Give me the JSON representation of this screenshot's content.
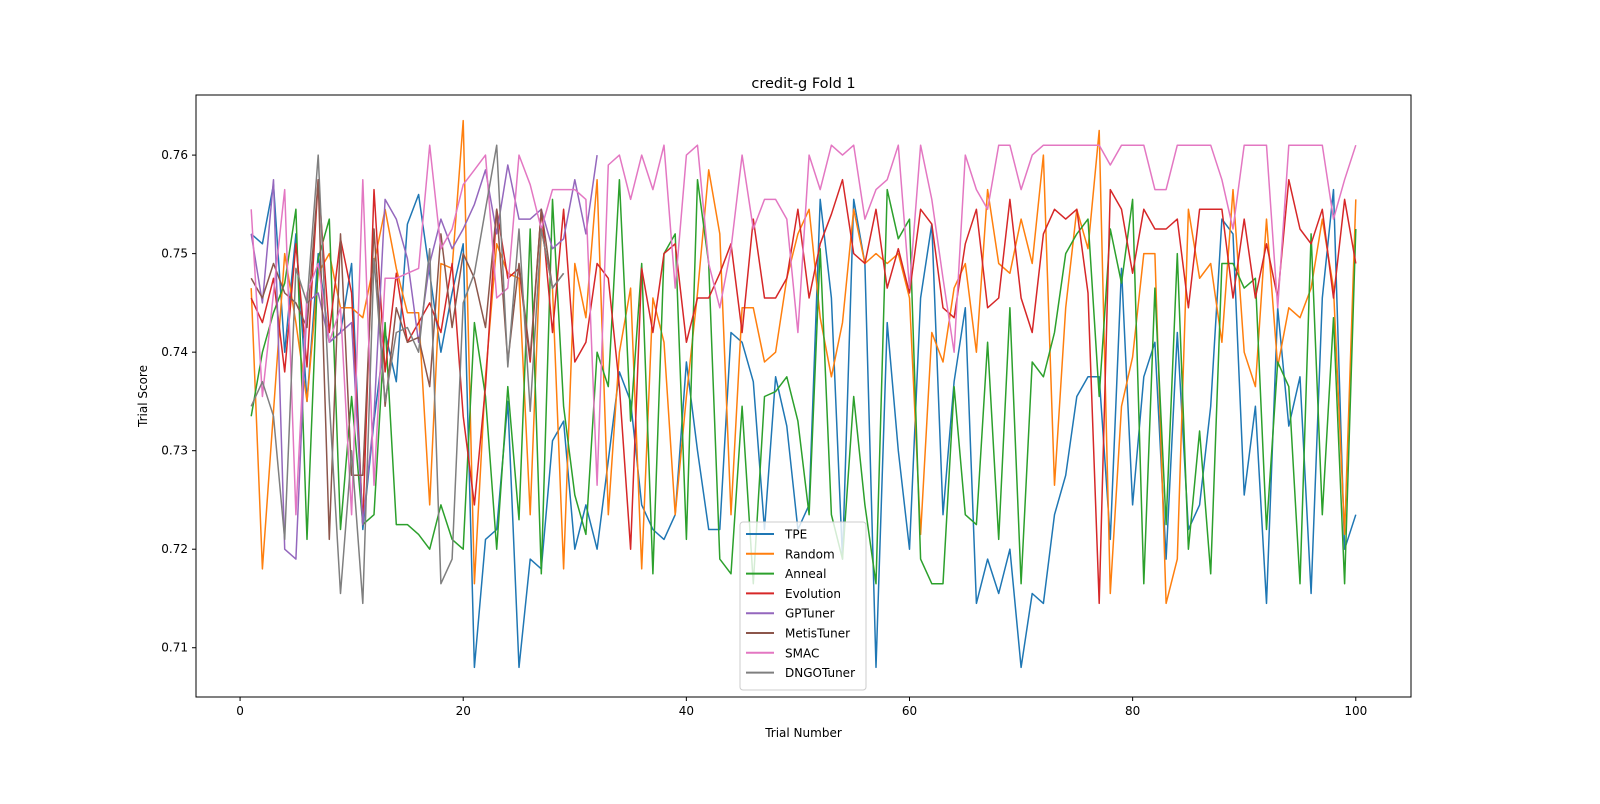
{
  "chart_data": {
    "type": "line",
    "title": "credit-g Fold 1",
    "xlabel": "Trial Number",
    "ylabel": "Trial Score",
    "xlim": [
      -3.95,
      104.95
    ],
    "ylim": [
      0.705,
      0.7661
    ],
    "xticks": [
      0,
      20,
      40,
      60,
      80,
      100
    ],
    "yticks": [
      0.71,
      0.72,
      0.73,
      0.74,
      0.75,
      0.76
    ],
    "ytick_labels": [
      "0.71",
      "0.72",
      "0.73",
      "0.74",
      "0.75",
      "0.76"
    ],
    "grid": false,
    "legend_position": "lower center",
    "series": [
      {
        "name": "TPE",
        "color": "#1f77b4",
        "x_start": 1,
        "values": [
          0.752,
          0.751,
          0.757,
          0.74,
          0.752,
          0.735,
          0.75,
          0.741,
          0.742,
          0.749,
          0.722,
          0.733,
          0.742,
          0.737,
          0.753,
          0.756,
          0.748,
          0.74,
          0.746,
          0.751,
          0.708,
          0.721,
          0.722,
          0.735,
          0.708,
          0.719,
          0.718,
          0.731,
          0.733,
          0.72,
          0.7245,
          0.72,
          0.729,
          0.738,
          0.735,
          0.7245,
          0.722,
          0.721,
          0.7235,
          0.739,
          0.73,
          0.722,
          0.722,
          0.742,
          0.741,
          0.737,
          0.722,
          0.7375,
          0.7325,
          0.722,
          0.7245,
          0.7555,
          0.7455,
          0.719,
          0.7555,
          0.749,
          0.708,
          0.743,
          0.73,
          0.72,
          0.7455,
          0.753,
          0.7235,
          0.737,
          0.7445,
          0.7145,
          0.719,
          0.7155,
          0.72,
          0.708,
          0.7155,
          0.7145,
          0.7235,
          0.7275,
          0.7355,
          0.7375,
          0.7375,
          0.721,
          0.7485,
          0.7245,
          0.7375,
          0.741,
          0.719,
          0.742,
          0.722,
          0.7245,
          0.7345,
          0.7535,
          0.752,
          0.7255,
          0.7345,
          0.7145,
          0.7445,
          0.7325,
          0.7375,
          0.7155,
          0.7455,
          0.7565,
          0.72,
          0.7235
        ]
      },
      {
        "name": "Random",
        "color": "#ff7f0e",
        "x_start": 1,
        "values": [
          0.7465,
          0.718,
          0.734,
          0.75,
          0.743,
          0.735,
          0.748,
          0.75,
          0.7445,
          0.7445,
          0.7435,
          0.749,
          0.7545,
          0.7485,
          0.744,
          0.744,
          0.7245,
          0.749,
          0.7485,
          0.7635,
          0.7165,
          0.7375,
          0.751,
          0.748,
          0.7475,
          0.7235,
          0.7525,
          0.7465,
          0.718,
          0.749,
          0.7435,
          0.7575,
          0.7235,
          0.74,
          0.7465,
          0.718,
          0.7455,
          0.741,
          0.7235,
          0.7355,
          0.746,
          0.7585,
          0.752,
          0.7235,
          0.7445,
          0.7445,
          0.739,
          0.74,
          0.7475,
          0.752,
          0.7545,
          0.7435,
          0.7375,
          0.743,
          0.7545,
          0.749,
          0.75,
          0.749,
          0.75,
          0.7455,
          0.7215,
          0.742,
          0.739,
          0.7465,
          0.749,
          0.74,
          0.7565,
          0.749,
          0.748,
          0.7535,
          0.749,
          0.76,
          0.7265,
          0.7445,
          0.7545,
          0.7505,
          0.7625,
          0.7155,
          0.7345,
          0.7395,
          0.75,
          0.75,
          0.7145,
          0.719,
          0.7545,
          0.7475,
          0.749,
          0.741,
          0.7565,
          0.74,
          0.7365,
          0.7535,
          0.7385,
          0.7445,
          0.7435,
          0.7465,
          0.7535,
          0.7465,
          0.7215,
          0.7555
        ]
      },
      {
        "name": "Anneal",
        "color": "#2ca02c",
        "x_start": 1,
        "values": [
          0.7335,
          0.74,
          0.744,
          0.747,
          0.7545,
          0.721,
          0.7495,
          0.7535,
          0.722,
          0.7355,
          0.7225,
          0.7235,
          0.743,
          0.7225,
          0.7225,
          0.7215,
          0.72,
          0.7245,
          0.721,
          0.72,
          0.743,
          0.7355,
          0.72,
          0.7365,
          0.723,
          0.7525,
          0.7175,
          0.7555,
          0.7345,
          0.7255,
          0.7215,
          0.74,
          0.7365,
          0.7575,
          0.733,
          0.749,
          0.7175,
          0.75,
          0.752,
          0.721,
          0.7575,
          0.749,
          0.719,
          0.7175,
          0.7345,
          0.7165,
          0.7355,
          0.736,
          0.7375,
          0.733,
          0.7235,
          0.7505,
          0.7235,
          0.719,
          0.7355,
          0.7245,
          0.7165,
          0.7565,
          0.7515,
          0.7535,
          0.719,
          0.7165,
          0.7165,
          0.7365,
          0.7235,
          0.7225,
          0.741,
          0.721,
          0.7445,
          0.7165,
          0.739,
          0.7375,
          0.742,
          0.75,
          0.752,
          0.7535,
          0.7355,
          0.7525,
          0.747,
          0.7555,
          0.7165,
          0.7465,
          0.7225,
          0.75,
          0.72,
          0.732,
          0.7175,
          0.749,
          0.749,
          0.7465,
          0.7475,
          0.722,
          0.739,
          0.7365,
          0.7165,
          0.752,
          0.7235,
          0.7435,
          0.7165,
          0.7525
        ]
      },
      {
        "name": "Evolution",
        "color": "#d62728",
        "x_start": 1,
        "values": [
          0.7455,
          0.743,
          0.7475,
          0.738,
          0.751,
          0.7385,
          0.7575,
          0.742,
          0.7515,
          0.746,
          0.7225,
          0.7565,
          0.738,
          0.748,
          0.741,
          0.743,
          0.745,
          0.742,
          0.749,
          0.7335,
          0.7245,
          0.7365,
          0.7545,
          0.7475,
          0.7485,
          0.739,
          0.7545,
          0.742,
          0.7545,
          0.739,
          0.741,
          0.749,
          0.7475,
          0.7365,
          0.72,
          0.7485,
          0.742,
          0.75,
          0.751,
          0.741,
          0.7455,
          0.7455,
          0.748,
          0.751,
          0.742,
          0.7535,
          0.7455,
          0.7455,
          0.7475,
          0.7545,
          0.7455,
          0.751,
          0.754,
          0.7575,
          0.75,
          0.749,
          0.7545,
          0.7465,
          0.7505,
          0.746,
          0.7545,
          0.753,
          0.7445,
          0.7435,
          0.751,
          0.7545,
          0.7445,
          0.7455,
          0.7555,
          0.7455,
          0.742,
          0.752,
          0.7545,
          0.7535,
          0.7545,
          0.746,
          0.7145,
          0.7565,
          0.7545,
          0.748,
          0.7545,
          0.7525,
          0.7525,
          0.7535,
          0.7445,
          0.7545,
          0.7545,
          0.7545,
          0.7455,
          0.7535,
          0.7455,
          0.751,
          0.7455,
          0.7575,
          0.7525,
          0.751,
          0.7545,
          0.7455,
          0.7555,
          0.749
        ]
      },
      {
        "name": "GPTuner",
        "color": "#9467bd",
        "x_start": 1,
        "values": [
          0.752,
          0.745,
          0.7575,
          0.72,
          0.719,
          0.745,
          0.746,
          0.741,
          0.742,
          0.743,
          0.7225,
          0.7335,
          0.7555,
          0.7535,
          0.7495,
          0.741,
          0.749,
          0.7535,
          0.7505,
          0.7525,
          0.755,
          0.7585,
          0.752,
          0.759,
          0.7535,
          0.7535,
          0.7545,
          0.7505,
          0.7515,
          0.7575,
          0.752,
          0.76
        ]
      },
      {
        "name": "MetisTuner",
        "color": "#8c564b",
        "x_start": 1,
        "values": [
          0.7475,
          0.7455,
          0.749,
          0.746,
          0.745,
          0.7425,
          0.7575,
          0.721,
          0.752,
          0.7275,
          0.7275,
          0.7525,
          0.7345,
          0.7445,
          0.741,
          0.7415,
          0.7365,
          0.752,
          0.7425,
          0.75,
          0.7475,
          0.7425,
          0.7545,
          0.739,
          0.749,
          0.7395,
          0.7545,
          0.7465,
          0.748
        ]
      },
      {
        "name": "SMAC",
        "color": "#e377c2",
        "x_start": 1,
        "values": [
          0.7545,
          0.7355,
          0.746,
          0.7565,
          0.7235,
          0.746,
          0.749,
          0.741,
          0.7445,
          0.7235,
          0.7575,
          0.7265,
          0.7475,
          0.7475,
          0.748,
          0.7485,
          0.761,
          0.7505,
          0.7525,
          0.757,
          0.7585,
          0.76,
          0.7455,
          0.7465,
          0.76,
          0.757,
          0.7525,
          0.7565,
          0.7565,
          0.7565,
          0.7555,
          0.7265,
          0.759,
          0.76,
          0.7555,
          0.76,
          0.7565,
          0.761,
          0.7465,
          0.76,
          0.761,
          0.749,
          0.7445,
          0.7505,
          0.76,
          0.7525,
          0.7555,
          0.7555,
          0.7535,
          0.742,
          0.76,
          0.7565,
          0.761,
          0.76,
          0.761,
          0.7535,
          0.7565,
          0.7575,
          0.761,
          0.7465,
          0.761,
          0.7555,
          0.7475,
          0.74,
          0.76,
          0.7565,
          0.7545,
          0.761,
          0.761,
          0.7565,
          0.76,
          0.761,
          0.761,
          0.761,
          0.761,
          0.761,
          0.761,
          0.759,
          0.761,
          0.761,
          0.761,
          0.7565,
          0.7565,
          0.761,
          0.761,
          0.761,
          0.761,
          0.7575,
          0.7525,
          0.761,
          0.761,
          0.761,
          0.7445,
          0.761,
          0.761,
          0.761,
          0.761,
          0.7535,
          0.7575,
          0.761
        ]
      },
      {
        "name": "DNGOTuner",
        "color": "#7f7f7f",
        "x_start": 1,
        "values": [
          0.7345,
          0.737,
          0.7335,
          0.721,
          0.7485,
          0.745,
          0.76,
          0.735,
          0.7155,
          0.73,
          0.7145,
          0.7495,
          0.735,
          0.742,
          0.7425,
          0.74,
          0.7505,
          0.7165,
          0.719,
          0.745,
          0.748,
          0.7545,
          0.761,
          0.7385,
          0.7525,
          0.734,
          0.7525,
          0.7465,
          0.748
        ]
      }
    ]
  }
}
